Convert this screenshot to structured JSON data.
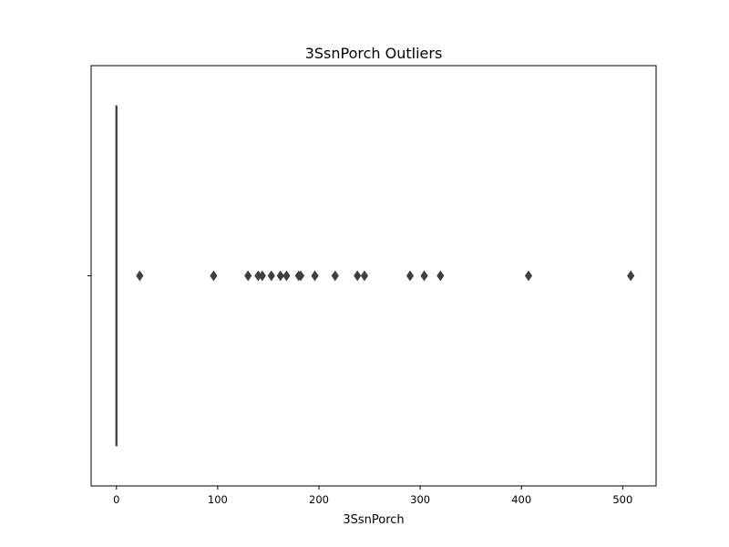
{
  "chart_data": {
    "type": "box",
    "title": "3SsnPorch Outliers",
    "xlabel": "3SsnPorch",
    "ylabel": "",
    "orientation": "horizontal",
    "xlim": [
      -25,
      533
    ],
    "xticks": [
      0,
      100,
      200,
      300,
      400,
      500
    ],
    "grid": false,
    "box": {
      "min": 0,
      "q1": 0,
      "median": 0,
      "q3": 0,
      "max": 0
    },
    "outliers": [
      23,
      96,
      130,
      140,
      144,
      153,
      162,
      168,
      180,
      182,
      196,
      216,
      238,
      245,
      290,
      304,
      320,
      407,
      508
    ],
    "colors": {
      "box_edge": "#3f3f3f",
      "outlier": "#3f3f3f",
      "axes": "#000000"
    }
  }
}
